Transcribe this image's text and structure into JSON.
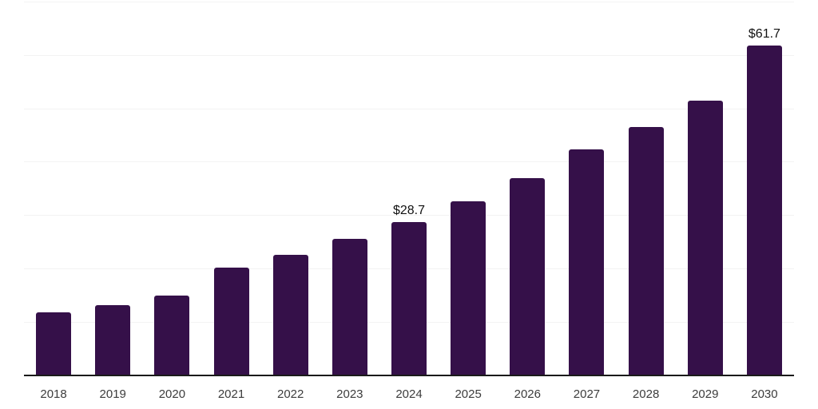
{
  "chart_data": {
    "type": "bar",
    "title": "",
    "xlabel": "",
    "ylabel": "",
    "categories": [
      "2018",
      "2019",
      "2020",
      "2021",
      "2022",
      "2023",
      "2024",
      "2025",
      "2026",
      "2027",
      "2028",
      "2029",
      "2030"
    ],
    "values": [
      11.8,
      13.2,
      15.0,
      20.2,
      22.5,
      25.6,
      28.7,
      32.6,
      36.9,
      42.3,
      46.5,
      51.4,
      61.7
    ],
    "data_labels": [
      {
        "index": 6,
        "text": "$28.7"
      },
      {
        "index": 12,
        "text": "$61.7"
      }
    ],
    "ylim": [
      0,
      70
    ],
    "gridline_step": 10,
    "grid": "horizontal-only",
    "y_axis_tick_labels": "none",
    "legend": "none",
    "colors": {
      "bar": "#351049",
      "axis_line": "#1a1a1a",
      "gridline": "#f3f3f3",
      "tick_label": "#3c3c3c",
      "data_label": "#111111"
    }
  }
}
